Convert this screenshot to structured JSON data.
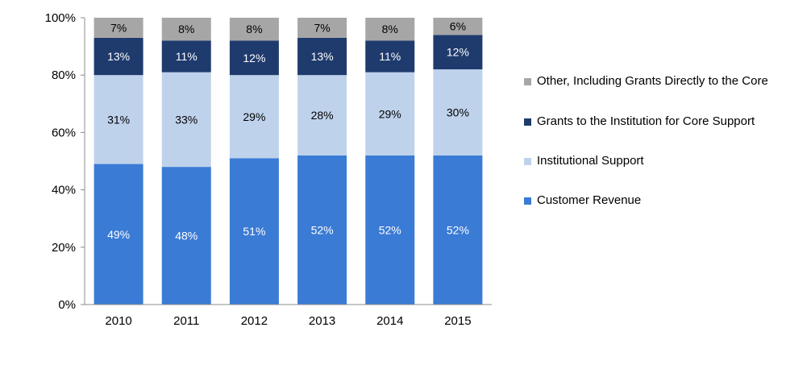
{
  "chart_data": {
    "type": "bar",
    "stacked": true,
    "percent_stacked": true,
    "categories": [
      "2010",
      "2011",
      "2012",
      "2013",
      "2014",
      "2015"
    ],
    "series": [
      {
        "name": "Customer Revenue",
        "values": [
          49,
          48,
          51,
          52,
          52,
          52
        ],
        "labels": [
          "49%",
          "48%",
          "51%",
          "52%",
          "52%",
          "52%"
        ],
        "color": "#3a7bd5",
        "label_color": "#ffffff"
      },
      {
        "name": "Institutional Support",
        "values": [
          31,
          33,
          29,
          28,
          29,
          30
        ],
        "labels": [
          "31%",
          "33%",
          "29%",
          "28%",
          "29%",
          "30%"
        ],
        "color": "#bfd2ec",
        "label_color": "#000000"
      },
      {
        "name": "Grants to the Institution for Core Support",
        "values": [
          13,
          11,
          12,
          13,
          11,
          12
        ],
        "labels": [
          "13%",
          "11%",
          "12%",
          "13%",
          "11%",
          "12%"
        ],
        "color": "#1f3b6e",
        "label_color": "#ffffff"
      },
      {
        "name": "Other, Including Grants Directly to the Core",
        "values": [
          7,
          8,
          8,
          7,
          8,
          6
        ],
        "labels": [
          "7%",
          "8%",
          "8%",
          "7%",
          "8%",
          "6%"
        ],
        "color": "#a6a6a6",
        "label_color": "#000000"
      }
    ],
    "y_ticks": [
      "0%",
      "20%",
      "40%",
      "60%",
      "80%",
      "100%"
    ],
    "ylim": [
      0,
      100
    ],
    "title": "",
    "xlabel": "",
    "ylabel": "",
    "grid": false,
    "legend_position": "right"
  },
  "legend": {
    "items": [
      {
        "label": "Other, Including Grants Directly to the Core",
        "color": "#a6a6a6"
      },
      {
        "label": "Grants to the Institution for Core Support",
        "color": "#1f3b6e"
      },
      {
        "label": "Institutional Support",
        "color": "#bfd2ec"
      },
      {
        "label": "Customer Revenue",
        "color": "#3a7bd5"
      }
    ]
  }
}
